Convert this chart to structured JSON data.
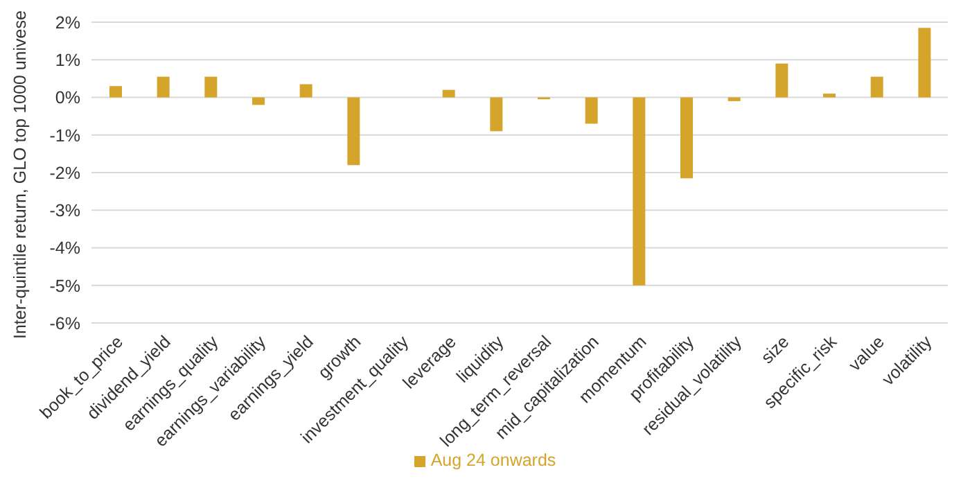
{
  "chart_data": {
    "type": "bar",
    "ylabel": "Inter-quintile return, GLO top 1000 univese",
    "categories": [
      "book_to_price",
      "dividend_yield",
      "earnings_quality",
      "earnings_variability",
      "earnings_yield",
      "growth",
      "investment_quality",
      "leverage",
      "liquidity",
      "long_term_reversal",
      "mid_capitalization",
      "momentum",
      "profitability",
      "residual_volatility",
      "size",
      "specific_risk",
      "value",
      "volatility"
    ],
    "series": [
      {
        "name": "Aug 24 onwards",
        "color": "#d4a52a",
        "values": [
          0.3,
          0.55,
          0.55,
          -0.2,
          0.35,
          -1.8,
          0.0,
          0.2,
          -0.9,
          -0.05,
          -0.7,
          -5.0,
          -2.15,
          -0.1,
          0.9,
          0.1,
          0.55,
          1.85
        ]
      }
    ],
    "ylim": [
      -6,
      2
    ],
    "yticks": [
      {
        "value": -6,
        "label": "-6%"
      },
      {
        "value": -5,
        "label": "-5%"
      },
      {
        "value": -4,
        "label": "-4%"
      },
      {
        "value": -3,
        "label": "-3%"
      },
      {
        "value": -2,
        "label": "-2%"
      },
      {
        "value": -1,
        "label": "-1%"
      },
      {
        "value": 0,
        "label": "0%"
      },
      {
        "value": 1,
        "label": "1%"
      },
      {
        "value": 2,
        "label": "2%"
      }
    ],
    "grid": "y",
    "legend": "bottom"
  }
}
